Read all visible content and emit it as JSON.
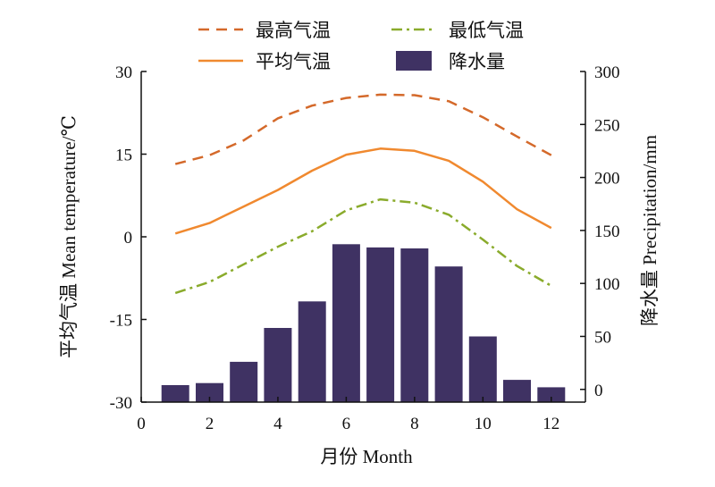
{
  "chart_data": {
    "type": "bar+line",
    "x": [
      1,
      2,
      3,
      4,
      5,
      6,
      7,
      8,
      9,
      10,
      11,
      12
    ],
    "xlabel": "月份 Month",
    "xlim": [
      0,
      13
    ],
    "xticks": [
      0,
      2,
      4,
      6,
      8,
      10,
      12
    ],
    "ylabel_left": "平均气温 Mean temperature/℃",
    "ylim_left": [
      -30,
      30
    ],
    "yticks_left": [
      -30,
      -15,
      0,
      15,
      30
    ],
    "ylabel_right": "降水量 Precipitation/mm",
    "ylim_right": [
      -12,
      300
    ],
    "yticks_right": [
      0,
      50,
      100,
      150,
      200,
      250,
      300
    ],
    "grid": false,
    "legend_position": "top",
    "series": [
      {
        "name": "最高气温",
        "kind": "line",
        "style": "dashed",
        "axis": "left",
        "color": "#d4692a",
        "values": [
          13.2,
          14.8,
          17.5,
          21.5,
          23.8,
          25.2,
          25.8,
          25.7,
          24.6,
          21.7,
          18.2,
          14.8
        ]
      },
      {
        "name": "最低气温",
        "kind": "line",
        "style": "dashdot",
        "axis": "left",
        "color": "#8aab2c",
        "values": [
          -10.2,
          -8.2,
          -5.0,
          -1.8,
          1.0,
          4.8,
          6.8,
          6.2,
          4.0,
          -0.5,
          -5.3,
          -8.9
        ]
      },
      {
        "name": "平均气温",
        "kind": "line",
        "style": "solid",
        "axis": "left",
        "color": "#f0892f",
        "values": [
          0.6,
          2.5,
          5.5,
          8.5,
          12.0,
          14.9,
          16.0,
          15.6,
          13.8,
          10.0,
          5.0,
          1.6
        ]
      },
      {
        "name": "降水量",
        "kind": "bar",
        "axis": "right",
        "color": "#3f3263",
        "values": [
          4,
          6,
          26,
          58,
          83,
          137,
          134,
          133,
          116,
          50,
          9,
          2
        ]
      }
    ]
  }
}
